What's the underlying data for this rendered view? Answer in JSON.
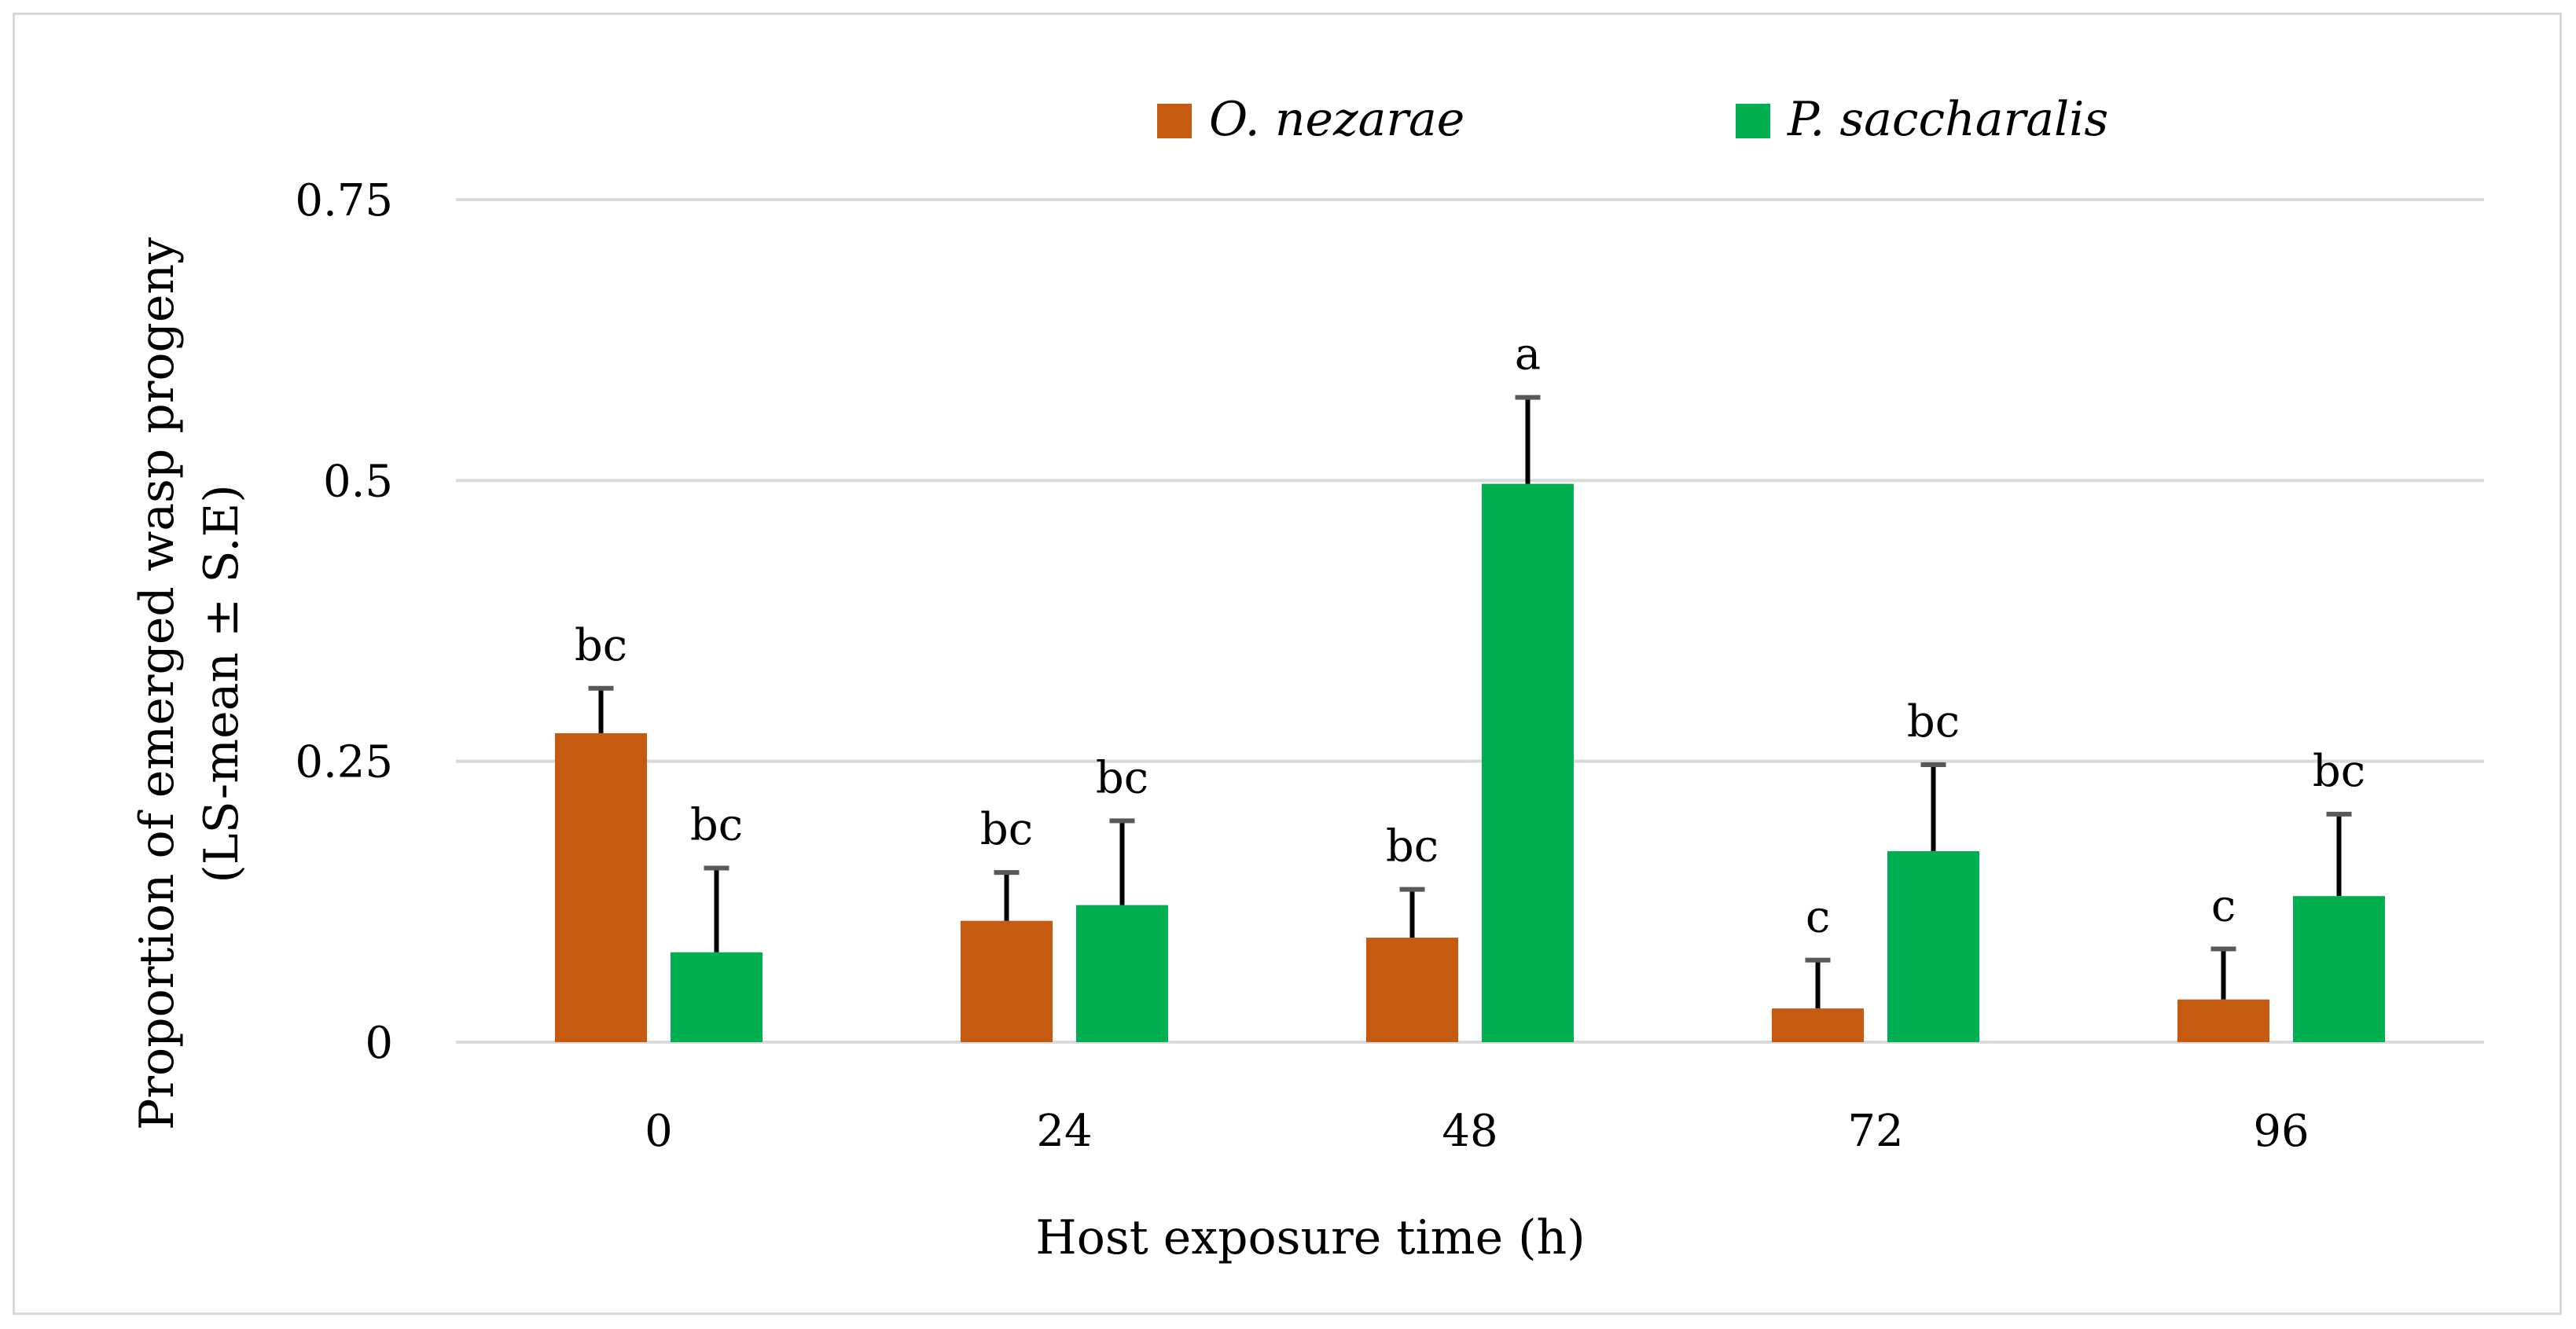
{
  "chart_data": {
    "type": "bar",
    "title": "",
    "xlabel": "Host exposure time (h)",
    "ylabel_line1": "Proportion of emerged wasp progeny",
    "ylabel_line2": "(LS-mean ± S.E)",
    "categories": [
      "0",
      "24",
      "48",
      "72",
      "96"
    ],
    "ylim": [
      0,
      0.75
    ],
    "yticks": [
      0,
      0.25,
      0.5,
      0.75
    ],
    "ytick_labels": [
      "0",
      "0.25",
      "0.5",
      "0.75"
    ],
    "grid": true,
    "legend_position": "top-center",
    "series": [
      {
        "name": "O. nezarae",
        "color": "#C55A11",
        "values": [
          0.275,
          0.108,
          0.093,
          0.03,
          0.038
        ],
        "errors": [
          0.04,
          0.043,
          0.043,
          0.043,
          0.045
        ],
        "letters": [
          "bc",
          "bc",
          "bc",
          "c",
          "c"
        ]
      },
      {
        "name": "P. saccharalis",
        "color": "#00B050",
        "values": [
          0.08,
          0.122,
          0.497,
          0.17,
          0.13
        ],
        "errors": [
          0.075,
          0.075,
          0.077,
          0.077,
          0.073
        ],
        "letters": [
          "bc",
          "bc",
          "a",
          "bc",
          "bc"
        ]
      }
    ],
    "gridline_color": "#d9d9d9",
    "errorbar_color": "#000000"
  }
}
